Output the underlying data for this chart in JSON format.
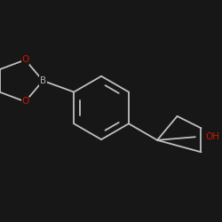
{
  "background_color": "#171717",
  "bond_color": "#c0c0c0",
  "bond_width": 1.3,
  "atom_B_color": "#b0b0b0",
  "atom_O_color": "#cc1500",
  "atom_OH_color": "#cc1500",
  "font_size_atoms": 7.5,
  "figsize": [
    2.5,
    2.5
  ],
  "dpi": 100,
  "xlim": [
    -1.6,
    1.9
  ],
  "ylim": [
    -1.7,
    1.7
  ]
}
